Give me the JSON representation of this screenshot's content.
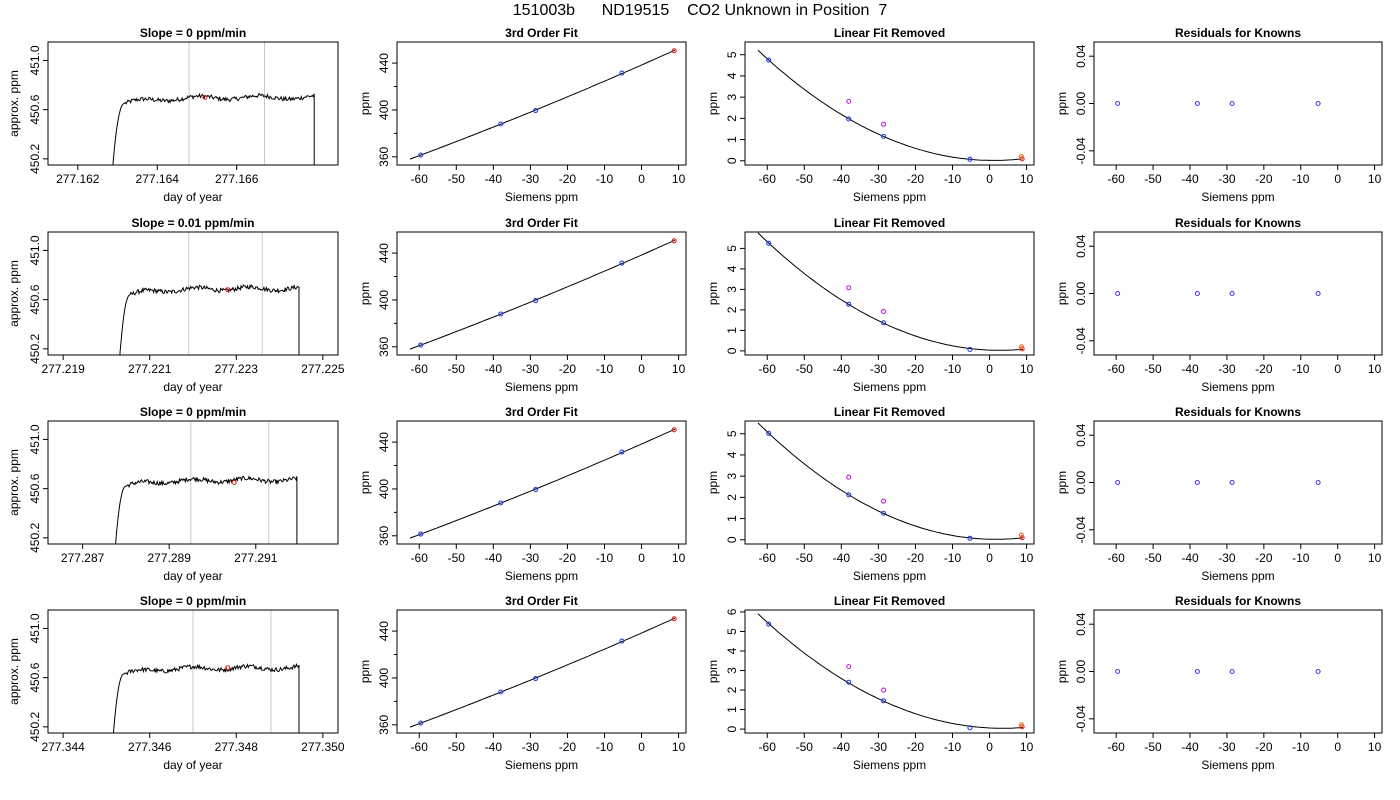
{
  "page": {
    "title": "151003b      ND19515    CO2 Unknown in Position  7"
  },
  "chart_data": [
    {
      "type": "line",
      "title": "Slope =  0  ppm/min",
      "xlabel": "day of year",
      "ylabel": "approx. ppm",
      "xlim": [
        277.16125,
        277.16855
      ],
      "ylim": [
        450.15,
        451.15
      ],
      "xticks": [
        277.162,
        277.164,
        277.166
      ],
      "xtick_labels": [
        "277.162",
        "277.164",
        "277.166"
      ],
      "yticks": [
        450.2,
        450.6,
        451.0
      ],
      "ytick_labels": [
        "450.2",
        "450.6",
        "451.0"
      ],
      "vlines": [
        277.1648,
        277.1667
      ],
      "marker": {
        "x": 277.1652,
        "y": 450.7
      },
      "trace": {
        "start": 277.16287,
        "end": 277.16795,
        "left_low": 450.1,
        "plateau": 450.7,
        "right_low": 450.1
      }
    },
    {
      "type": "line",
      "title": "3rd Order Fit",
      "xlabel": "Siemens ppm",
      "ylabel": "ppm",
      "xlim": [
        -66,
        12
      ],
      "ylim": [
        353,
        458
      ],
      "xticks": [
        -60,
        -50,
        -40,
        -30,
        -20,
        -10,
        0,
        10
      ],
      "xtick_labels": [
        "-60",
        "-50",
        "-40",
        "-30",
        "-20",
        "-10",
        "0",
        "10"
      ],
      "yticks": [
        360,
        400,
        440
      ],
      "ytick_labels": [
        "360",
        "400",
        "440"
      ],
      "fit_x": [
        -62.5,
        9
      ],
      "points": [
        {
          "x": -59.6,
          "y": 361.5,
          "c": "blue"
        },
        {
          "x": -38,
          "y": 388,
          "c": "blue"
        },
        {
          "x": -28.6,
          "y": 399.5,
          "c": "blue"
        },
        {
          "x": -5.3,
          "y": 431.5,
          "c": "blue"
        },
        {
          "x": 8.8,
          "y": 450.5,
          "c": "red"
        }
      ]
    },
    {
      "type": "line",
      "title": "Linear Fit Removed",
      "xlabel": "Siemens ppm",
      "ylabel": "ppm",
      "xlim": [
        -66,
        12
      ],
      "ylim": [
        -0.2,
        5.6
      ],
      "xticks": [
        -60,
        -50,
        -40,
        -30,
        -20,
        -10,
        0,
        10
      ],
      "xtick_labels": [
        "-60",
        "-50",
        "-40",
        "-30",
        "-20",
        "-10",
        "0",
        "10"
      ],
      "yticks": [
        0,
        1,
        2,
        3,
        4,
        5
      ],
      "ytick_labels": [
        "0",
        "1",
        "2",
        "3",
        "4",
        "5"
      ],
      "fit_x": [
        -62.5,
        9
      ],
      "points": [
        {
          "x": -59.6,
          "y": 4.75,
          "c": "blue"
        },
        {
          "x": -38,
          "y": 1.97,
          "c": "blue"
        },
        {
          "x": -28.6,
          "y": 1.15,
          "c": "blue"
        },
        {
          "x": -5.3,
          "y": 0.07,
          "c": "blue"
        },
        {
          "x": 8.8,
          "y": 0.09,
          "c": "red"
        },
        {
          "x": -38,
          "y": 2.8,
          "c": "magenta"
        },
        {
          "x": -28.6,
          "y": 1.72,
          "c": "magenta"
        },
        {
          "x": 8.6,
          "y": 0.2,
          "c": "orange"
        }
      ]
    },
    {
      "type": "scatter",
      "title": "Residuals for Knowns",
      "xlabel": "Siemens ppm",
      "ylabel": "ppm",
      "xlim": [
        -66,
        12
      ],
      "ylim": [
        -0.052,
        0.052
      ],
      "xticks": [
        -60,
        -50,
        -40,
        -30,
        -20,
        -10,
        0,
        10
      ],
      "xtick_labels": [
        "-60",
        "-50",
        "-40",
        "-30",
        "-20",
        "-10",
        "0",
        "10"
      ],
      "yticks": [
        -0.04,
        0,
        0.04
      ],
      "ytick_labels": [
        "-0.04",
        "0.00",
        "0.04"
      ],
      "points": [
        {
          "x": -59.6,
          "y": 0,
          "c": "purple"
        },
        {
          "x": -38,
          "y": 0,
          "c": "purple"
        },
        {
          "x": -28.6,
          "y": 0,
          "c": "purple"
        },
        {
          "x": -5.3,
          "y": 0,
          "c": "purple"
        }
      ]
    },
    {
      "type": "line",
      "title": "Slope =  0.01  ppm/min",
      "xlabel": "day of year",
      "ylabel": "approx. ppm",
      "xlim": [
        277.21865,
        277.22535
      ],
      "ylim": [
        450.15,
        451.15
      ],
      "xticks": [
        277.219,
        277.221,
        277.223,
        277.225
      ],
      "xtick_labels": [
        "277.219",
        "277.221",
        "277.223",
        "277.225"
      ],
      "yticks": [
        450.2,
        450.6,
        451.0
      ],
      "ytick_labels": [
        "450.2",
        "450.6",
        "451.0"
      ],
      "vlines": [
        277.2219,
        277.2236
      ],
      "marker": {
        "x": 277.2228,
        "y": 450.68
      },
      "trace": {
        "start": 277.2203,
        "end": 277.22445,
        "left_low": 450.1,
        "plateau": 450.69,
        "right_low": 450.1
      }
    },
    {
      "type": "line",
      "title": "3rd Order Fit",
      "xlabel": "Siemens ppm",
      "ylabel": "ppm",
      "xlim": [
        -66,
        12
      ],
      "ylim": [
        353,
        458
      ],
      "xticks": [
        -60,
        -50,
        -40,
        -30,
        -20,
        -10,
        0,
        10
      ],
      "xtick_labels": [
        "-60",
        "-50",
        "-40",
        "-30",
        "-20",
        "-10",
        "0",
        "10"
      ],
      "yticks": [
        360,
        400,
        440
      ],
      "ytick_labels": [
        "360",
        "400",
        "440"
      ],
      "fit_x": [
        -62.5,
        9
      ],
      "points": [
        {
          "x": -59.6,
          "y": 361.5,
          "c": "blue"
        },
        {
          "x": -38,
          "y": 388,
          "c": "blue"
        },
        {
          "x": -28.6,
          "y": 399.5,
          "c": "blue"
        },
        {
          "x": -5.3,
          "y": 431.5,
          "c": "blue"
        },
        {
          "x": 8.8,
          "y": 450.5,
          "c": "red"
        }
      ]
    },
    {
      "type": "line",
      "title": "Linear Fit Removed",
      "xlabel": "Siemens ppm",
      "ylabel": "ppm",
      "xlim": [
        -66,
        12
      ],
      "ylim": [
        -0.2,
        5.8
      ],
      "xticks": [
        -60,
        -50,
        -40,
        -30,
        -20,
        -10,
        0,
        10
      ],
      "xtick_labels": [
        "-60",
        "-50",
        "-40",
        "-30",
        "-20",
        "-10",
        "0",
        "10"
      ],
      "yticks": [
        0,
        1,
        2,
        3,
        4,
        5
      ],
      "ytick_labels": [
        "0",
        "1",
        "2",
        "3",
        "4",
        "5"
      ],
      "fit_x": [
        -62.5,
        9
      ],
      "points": [
        {
          "x": -59.6,
          "y": 5.25,
          "c": "blue"
        },
        {
          "x": -38,
          "y": 2.28,
          "c": "blue"
        },
        {
          "x": -28.6,
          "y": 1.37,
          "c": "blue"
        },
        {
          "x": -5.3,
          "y": 0.07,
          "c": "blue"
        },
        {
          "x": 8.8,
          "y": 0.1,
          "c": "red"
        },
        {
          "x": -38,
          "y": 3.08,
          "c": "magenta"
        },
        {
          "x": -28.6,
          "y": 1.92,
          "c": "magenta"
        },
        {
          "x": 8.6,
          "y": 0.2,
          "c": "orange"
        }
      ]
    },
    {
      "type": "scatter",
      "title": "Residuals for Knowns",
      "xlabel": "Siemens ppm",
      "ylabel": "ppm",
      "xlim": [
        -66,
        12
      ],
      "ylim": [
        -0.052,
        0.052
      ],
      "xticks": [
        -60,
        -50,
        -40,
        -30,
        -20,
        -10,
        0,
        10
      ],
      "xtick_labels": [
        "-60",
        "-50",
        "-40",
        "-30",
        "-20",
        "-10",
        "0",
        "10"
      ],
      "yticks": [
        -0.04,
        0,
        0.04
      ],
      "ytick_labels": [
        "-0.04",
        "0.00",
        "0.04"
      ],
      "points": [
        {
          "x": -59.6,
          "y": 0,
          "c": "purple"
        },
        {
          "x": -38,
          "y": 0,
          "c": "purple"
        },
        {
          "x": -28.6,
          "y": 0,
          "c": "purple"
        },
        {
          "x": -5.3,
          "y": 0,
          "c": "purple"
        }
      ]
    },
    {
      "type": "line",
      "title": "Slope =  0  ppm/min",
      "xlabel": "day of year",
      "ylabel": "approx. ppm",
      "xlim": [
        277.2862,
        277.2929
      ],
      "ylim": [
        450.15,
        451.15
      ],
      "xticks": [
        277.287,
        277.289,
        277.291
      ],
      "xtick_labels": [
        "277.287",
        "277.289",
        "277.291"
      ],
      "yticks": [
        450.2,
        450.6,
        451.0
      ],
      "ytick_labels": [
        "450.2",
        "450.6",
        "451.0"
      ],
      "vlines": [
        277.2895,
        277.2913
      ],
      "marker": {
        "x": 277.2905,
        "y": 450.65
      },
      "trace": {
        "start": 277.28775,
        "end": 277.29195,
        "left_low": 450.1,
        "plateau": 450.67,
        "right_low": 450.1
      }
    },
    {
      "type": "line",
      "title": "3rd Order Fit",
      "xlabel": "Siemens ppm",
      "ylabel": "ppm",
      "xlim": [
        -66,
        12
      ],
      "ylim": [
        353,
        458
      ],
      "xticks": [
        -60,
        -50,
        -40,
        -30,
        -20,
        -10,
        0,
        10
      ],
      "xtick_labels": [
        "-60",
        "-50",
        "-40",
        "-30",
        "-20",
        "-10",
        "0",
        "10"
      ],
      "yticks": [
        360,
        400,
        440
      ],
      "ytick_labels": [
        "360",
        "400",
        "440"
      ],
      "fit_x": [
        -62.5,
        9
      ],
      "points": [
        {
          "x": -59.6,
          "y": 361.5,
          "c": "blue"
        },
        {
          "x": -38,
          "y": 388,
          "c": "blue"
        },
        {
          "x": -28.6,
          "y": 399.5,
          "c": "blue"
        },
        {
          "x": -5.3,
          "y": 431.5,
          "c": "blue"
        },
        {
          "x": 8.8,
          "y": 450.5,
          "c": "red"
        }
      ]
    },
    {
      "type": "line",
      "title": "Linear Fit Removed",
      "xlabel": "Siemens ppm",
      "ylabel": "ppm",
      "xlim": [
        -66,
        12
      ],
      "ylim": [
        -0.2,
        5.6
      ],
      "xticks": [
        -60,
        -50,
        -40,
        -30,
        -20,
        -10,
        0,
        10
      ],
      "xtick_labels": [
        "-60",
        "-50",
        "-40",
        "-30",
        "-20",
        "-10",
        "0",
        "10"
      ],
      "yticks": [
        0,
        1,
        2,
        3,
        4,
        5
      ],
      "ytick_labels": [
        "0",
        "1",
        "2",
        "3",
        "4",
        "5"
      ],
      "fit_x": [
        -62.5,
        9
      ],
      "points": [
        {
          "x": -59.6,
          "y": 5.02,
          "c": "blue"
        },
        {
          "x": -38,
          "y": 2.12,
          "c": "blue"
        },
        {
          "x": -28.6,
          "y": 1.25,
          "c": "blue"
        },
        {
          "x": -5.3,
          "y": 0.07,
          "c": "blue"
        },
        {
          "x": 8.8,
          "y": 0.1,
          "c": "red"
        },
        {
          "x": -38,
          "y": 2.95,
          "c": "magenta"
        },
        {
          "x": -28.6,
          "y": 1.82,
          "c": "magenta"
        },
        {
          "x": 8.6,
          "y": 0.22,
          "c": "orange"
        }
      ]
    },
    {
      "type": "scatter",
      "title": "Residuals for Knowns",
      "xlabel": "Siemens ppm",
      "ylabel": "ppm",
      "xlim": [
        -66,
        12
      ],
      "ylim": [
        -0.052,
        0.052
      ],
      "xticks": [
        -60,
        -50,
        -40,
        -30,
        -20,
        -10,
        0,
        10
      ],
      "xtick_labels": [
        "-60",
        "-50",
        "-40",
        "-30",
        "-20",
        "-10",
        "0",
        "10"
      ],
      "yticks": [
        -0.04,
        0,
        0.04
      ],
      "ytick_labels": [
        "-0.04",
        "0.00",
        "0.04"
      ],
      "points": [
        {
          "x": -59.6,
          "y": 0,
          "c": "purple"
        },
        {
          "x": -38,
          "y": 0,
          "c": "purple"
        },
        {
          "x": -28.6,
          "y": 0,
          "c": "purple"
        },
        {
          "x": -5.3,
          "y": 0,
          "c": "purple"
        }
      ]
    },
    {
      "type": "line",
      "title": "Slope =  0  ppm/min",
      "xlabel": "day of year",
      "ylabel": "approx. ppm",
      "xlim": [
        277.34365,
        277.35035
      ],
      "ylim": [
        450.15,
        451.15
      ],
      "xticks": [
        277.344,
        277.346,
        277.348,
        277.35
      ],
      "xtick_labels": [
        "277.344",
        "277.346",
        "277.348",
        "277.350"
      ],
      "yticks": [
        450.2,
        450.6,
        451.0
      ],
      "ytick_labels": [
        "450.2",
        "450.6",
        "451.0"
      ],
      "vlines": [
        277.347,
        277.3488
      ],
      "marker": {
        "x": 277.3478,
        "y": 450.68
      },
      "trace": {
        "start": 277.34515,
        "end": 277.34945,
        "left_low": 450.1,
        "plateau": 450.68,
        "right_low": 450.1
      }
    },
    {
      "type": "line",
      "title": "3rd Order Fit",
      "xlabel": "Siemens ppm",
      "ylabel": "ppm",
      "xlim": [
        -66,
        12
      ],
      "ylim": [
        353,
        458
      ],
      "xticks": [
        -60,
        -50,
        -40,
        -30,
        -20,
        -10,
        0,
        10
      ],
      "xtick_labels": [
        "-60",
        "-50",
        "-40",
        "-30",
        "-20",
        "-10",
        "0",
        "10"
      ],
      "yticks": [
        360,
        400,
        440
      ],
      "ytick_labels": [
        "360",
        "400",
        "440"
      ],
      "fit_x": [
        -62.5,
        9
      ],
      "points": [
        {
          "x": -59.6,
          "y": 361.5,
          "c": "blue"
        },
        {
          "x": -38,
          "y": 388,
          "c": "blue"
        },
        {
          "x": -28.6,
          "y": 399.5,
          "c": "blue"
        },
        {
          "x": -5.3,
          "y": 431.5,
          "c": "blue"
        },
        {
          "x": 8.8,
          "y": 450.5,
          "c": "red"
        }
      ]
    },
    {
      "type": "line",
      "title": "Linear Fit Removed",
      "xlabel": "Siemens ppm",
      "ylabel": "ppm",
      "xlim": [
        -66,
        12
      ],
      "ylim": [
        -0.2,
        6.1
      ],
      "xticks": [
        -60,
        -50,
        -40,
        -30,
        -20,
        -10,
        0,
        10
      ],
      "xtick_labels": [
        "-60",
        "-50",
        "-40",
        "-30",
        "-20",
        "-10",
        "0",
        "10"
      ],
      "yticks": [
        0,
        1,
        2,
        3,
        4,
        5,
        6
      ],
      "ytick_labels": [
        "0",
        "1",
        "2",
        "3",
        "4",
        "5",
        "6"
      ],
      "fit_x": [
        -62.5,
        9
      ],
      "points": [
        {
          "x": -59.6,
          "y": 5.38,
          "c": "blue"
        },
        {
          "x": -38,
          "y": 2.4,
          "c": "blue"
        },
        {
          "x": -28.6,
          "y": 1.45,
          "c": "blue"
        },
        {
          "x": -5.3,
          "y": 0.07,
          "c": "blue"
        },
        {
          "x": 8.8,
          "y": 0.12,
          "c": "red"
        },
        {
          "x": -38,
          "y": 3.2,
          "c": "magenta"
        },
        {
          "x": -28.6,
          "y": 2.0,
          "c": "magenta"
        },
        {
          "x": 8.6,
          "y": 0.22,
          "c": "orange"
        }
      ]
    },
    {
      "type": "scatter",
      "title": "Residuals for Knowns",
      "xlabel": "Siemens ppm",
      "ylabel": "ppm",
      "xlim": [
        -66,
        12
      ],
      "ylim": [
        -0.052,
        0.052
      ],
      "xticks": [
        -60,
        -50,
        -40,
        -30,
        -20,
        -10,
        0,
        10
      ],
      "xtick_labels": [
        "-60",
        "-50",
        "-40",
        "-30",
        "-20",
        "-10",
        "0",
        "10"
      ],
      "yticks": [
        -0.04,
        0,
        0.04
      ],
      "ytick_labels": [
        "-0.04",
        "0.00",
        "0.04"
      ],
      "points": [
        {
          "x": -59.6,
          "y": 0,
          "c": "purple"
        },
        {
          "x": -38,
          "y": 0,
          "c": "purple"
        },
        {
          "x": -28.6,
          "y": 0,
          "c": "purple"
        },
        {
          "x": -5.3,
          "y": 0,
          "c": "purple"
        }
      ]
    }
  ],
  "colors": {
    "blue": "#1f3fe0",
    "red": "#e0201a",
    "magenta": "#c020e0",
    "orange": "#f07020",
    "purple": "#6030e0",
    "vline": "#c8c8c8",
    "axis": "#000000"
  }
}
